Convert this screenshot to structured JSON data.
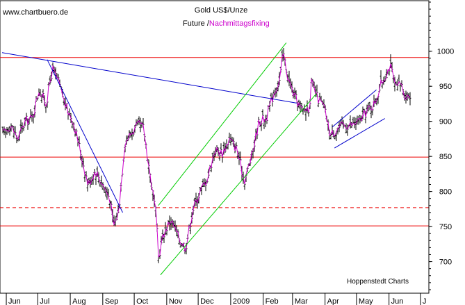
{
  "chart_data": {
    "type": "ohlc",
    "title": "Gold US$/Unze",
    "subtitle_prefix": "Future /",
    "subtitle_highlight": "Nachmittagsfixing",
    "watermark": "www.chartbuero.de",
    "source": "Hoppenstedt Charts",
    "ylim": [
      655,
      1072
    ],
    "y_ticks": [
      700,
      750,
      800,
      850,
      900,
      950,
      1000
    ],
    "x_labels": [
      "Jun",
      "Jul",
      "Aug",
      "Sep",
      "Oct",
      "Nov",
      "Dec",
      "2009",
      "Feb",
      "Mar",
      "Apr",
      "May",
      "Jun",
      "J"
    ],
    "grid": false,
    "horizontal_lines": [
      {
        "value": 991,
        "style": "solid",
        "color": "#ee0000"
      },
      {
        "value": 849,
        "style": "solid",
        "color": "#ee0000"
      },
      {
        "value": 777,
        "style": "dashed",
        "color": "#ee0000"
      },
      {
        "value": 751,
        "style": "solid",
        "color": "#ee0000"
      }
    ],
    "trendlines": [
      {
        "name": "long-term-resistance",
        "color": "#0000cc",
        "points": [
          [
            "2008-05-28",
            998
          ],
          [
            "2009-03-05",
            926
          ]
        ]
      },
      {
        "name": "jul-sep-downtrend",
        "color": "#0000cc",
        "points": [
          [
            "2008-07-10",
            988
          ],
          [
            "2008-09-20",
            770
          ]
        ]
      },
      {
        "name": "channel-upper",
        "color": "#00cc00",
        "points": [
          [
            "2008-10-24",
            780
          ],
          [
            "2009-02-23",
            1012
          ]
        ]
      },
      {
        "name": "channel-lower",
        "color": "#00cc00",
        "points": [
          [
            "2008-10-26",
            681
          ],
          [
            "2009-03-24",
            940
          ]
        ]
      },
      {
        "name": "apr-may-upper",
        "color": "#0000cc",
        "points": [
          [
            "2009-04-08",
            892
          ],
          [
            "2009-05-20",
            945
          ]
        ]
      },
      {
        "name": "apr-may-lower",
        "color": "#0000cc",
        "points": [
          [
            "2009-04-10",
            862
          ],
          [
            "2009-05-28",
            904
          ]
        ]
      }
    ],
    "price_color": "#cc00cc",
    "bar_color": "#000000",
    "price_path": [
      [
        "2008-05-28",
        880
      ],
      [
        "2008-06-05",
        895
      ],
      [
        "2008-06-12",
        875
      ],
      [
        "2008-06-19",
        900
      ],
      [
        "2008-06-26",
        905
      ],
      [
        "2008-07-02",
        945
      ],
      [
        "2008-07-09",
        925
      ],
      [
        "2008-07-15",
        975
      ],
      [
        "2008-07-21",
        955
      ],
      [
        "2008-07-28",
        920
      ],
      [
        "2008-08-04",
        900
      ],
      [
        "2008-08-11",
        855
      ],
      [
        "2008-08-18",
        810
      ],
      [
        "2008-08-25",
        830
      ],
      [
        "2008-09-01",
        810
      ],
      [
        "2008-09-08",
        790
      ],
      [
        "2008-09-11",
        750
      ],
      [
        "2008-09-16",
        770
      ],
      [
        "2008-09-22",
        870
      ],
      [
        "2008-09-29",
        885
      ],
      [
        "2008-10-06",
        895
      ],
      [
        "2008-10-10",
        890
      ],
      [
        "2008-10-16",
        825
      ],
      [
        "2008-10-22",
        765
      ],
      [
        "2008-10-24",
        705
      ],
      [
        "2008-10-29",
        740
      ],
      [
        "2008-11-05",
        760
      ],
      [
        "2008-11-12",
        735
      ],
      [
        "2008-11-19",
        720
      ],
      [
        "2008-11-26",
        775
      ],
      [
        "2008-12-03",
        800
      ],
      [
        "2008-12-10",
        820
      ],
      [
        "2008-12-17",
        860
      ],
      [
        "2008-12-24",
        855
      ],
      [
        "2008-12-31",
        875
      ],
      [
        "2009-01-07",
        860
      ],
      [
        "2009-01-14",
        815
      ],
      [
        "2009-01-21",
        850
      ],
      [
        "2009-01-28",
        900
      ],
      [
        "2009-02-04",
        905
      ],
      [
        "2009-02-11",
        940
      ],
      [
        "2009-02-17",
        960
      ],
      [
        "2009-02-20",
        998
      ],
      [
        "2009-02-25",
        960
      ],
      [
        "2009-03-03",
        935
      ],
      [
        "2009-03-10",
        915
      ],
      [
        "2009-03-17",
        920
      ],
      [
        "2009-03-19",
        955
      ],
      [
        "2009-03-24",
        935
      ],
      [
        "2009-03-31",
        920
      ],
      [
        "2009-04-06",
        880
      ],
      [
        "2009-04-13",
        890
      ],
      [
        "2009-04-20",
        895
      ],
      [
        "2009-04-27",
        895
      ],
      [
        "2009-05-04",
        900
      ],
      [
        "2009-05-11",
        915
      ],
      [
        "2009-05-18",
        925
      ],
      [
        "2009-05-25",
        955
      ],
      [
        "2009-06-02",
        980
      ],
      [
        "2009-06-08",
        945
      ],
      [
        "2009-06-12",
        955
      ],
      [
        "2009-06-17",
        935
      ],
      [
        "2009-06-22",
        940
      ]
    ]
  }
}
